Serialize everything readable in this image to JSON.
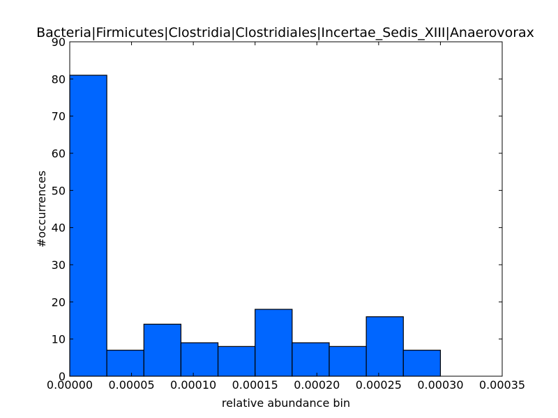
{
  "chart_data": {
    "type": "bar",
    "title": "Bacteria|Firmicutes|Clostridia|Clostridiales|Incertae_Sedis_XIII|Anaerovorax",
    "xlabel": "relative abundance bin",
    "ylabel": "#occurrences",
    "xlim": [
      0,
      0.00035
    ],
    "ylim": [
      0,
      90
    ],
    "bin_width": 3e-05,
    "bin_starts": [
      0,
      3e-05,
      6e-05,
      9e-05,
      0.00012,
      0.00015,
      0.00018,
      0.00021,
      0.00024,
      0.00027
    ],
    "values": [
      81,
      7,
      14,
      9,
      8,
      18,
      9,
      8,
      16,
      7
    ],
    "x_ticks": [
      0,
      5e-05,
      0.0001,
      0.00015,
      0.0002,
      0.00025,
      0.0003,
      0.00035
    ],
    "x_tick_labels": [
      "0.00000",
      "0.00005",
      "0.00010",
      "0.00015",
      "0.00020",
      "0.00025",
      "0.00030",
      "0.00035"
    ],
    "y_ticks": [
      0,
      10,
      20,
      30,
      40,
      50,
      60,
      70,
      80,
      90
    ],
    "y_tick_labels": [
      "0",
      "10",
      "20",
      "30",
      "40",
      "50",
      "60",
      "70",
      "80",
      "90"
    ],
    "bar_color": "#0066ff",
    "edge_color": "#000000",
    "grid": false
  }
}
